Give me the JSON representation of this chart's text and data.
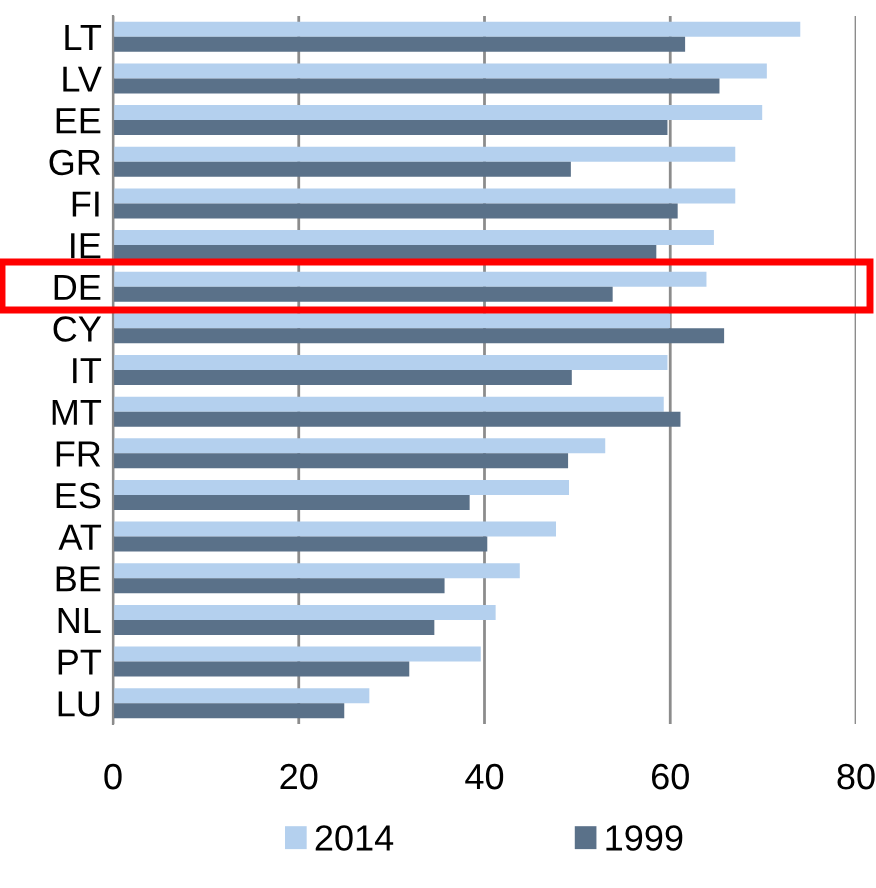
{
  "chart_data": {
    "type": "bar",
    "orientation": "horizontal",
    "categories": [
      "LT",
      "LV",
      "EE",
      "GR",
      "FI",
      "IE",
      "DE",
      "CY",
      "IT",
      "MT",
      "FR",
      "ES",
      "AT",
      "BE",
      "NL",
      "PT",
      "LU"
    ],
    "series": [
      {
        "name": "2014",
        "color": "#b4d0ee",
        "values": [
          74.0,
          70.4,
          69.9,
          67.0,
          67.0,
          64.7,
          63.9,
          60.0,
          59.7,
          59.3,
          53.0,
          49.1,
          47.7,
          43.8,
          41.2,
          39.6,
          27.6
        ]
      },
      {
        "name": "1999",
        "color": "#5a7189",
        "values": [
          61.6,
          65.3,
          59.7,
          49.3,
          60.8,
          58.5,
          53.8,
          65.8,
          49.4,
          61.1,
          49.0,
          38.4,
          40.3,
          35.7,
          34.6,
          31.9,
          24.9
        ]
      }
    ],
    "xlim": [
      0,
      80
    ],
    "xticks": [
      0,
      20,
      40,
      60,
      80
    ],
    "grid": "x",
    "legend": "bottom"
  }
}
